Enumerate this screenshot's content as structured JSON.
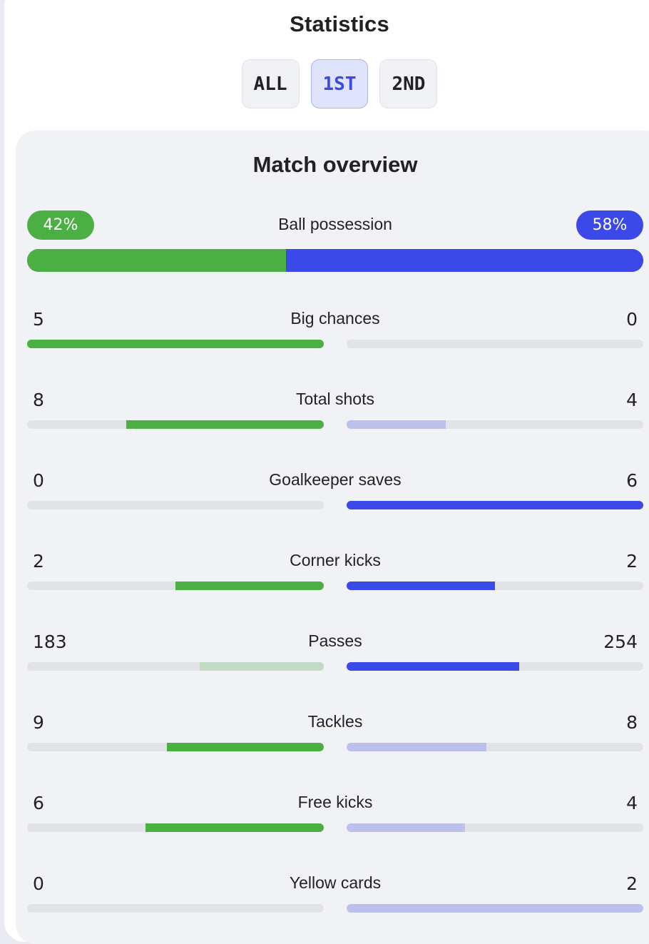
{
  "header": {
    "title": "Statistics"
  },
  "tabs": [
    {
      "label": "ALL",
      "active": false
    },
    {
      "label": "1ST",
      "active": true
    },
    {
      "label": "2ND",
      "active": false
    }
  ],
  "overview": {
    "title": "Match overview",
    "possession": {
      "label": "Ball possession",
      "home": "42%",
      "away": "58%",
      "home_value": 42,
      "away_value": 58
    },
    "colors": {
      "home_strong": "#4caf43",
      "home_weak": "#c1dac4",
      "away_strong": "#3a49e8",
      "away_weak": "#bcc1ec",
      "track": "#e2e3e8"
    },
    "stats": [
      {
        "label": "Big chances",
        "home": "5",
        "away": "0",
        "home_value": 5,
        "away_value": 0,
        "home_strong": true,
        "away_strong": false
      },
      {
        "label": "Total shots",
        "home": "8",
        "away": "4",
        "home_value": 8,
        "away_value": 4,
        "home_strong": true,
        "away_strong": false
      },
      {
        "label": "Goalkeeper saves",
        "home": "0",
        "away": "6",
        "home_value": 0,
        "away_value": 6,
        "home_strong": false,
        "away_strong": true
      },
      {
        "label": "Corner kicks",
        "home": "2",
        "away": "2",
        "home_value": 2,
        "away_value": 2,
        "home_strong": true,
        "away_strong": true
      },
      {
        "label": "Passes",
        "home": "183",
        "away": "254",
        "home_value": 183,
        "away_value": 254,
        "home_strong": false,
        "away_strong": true
      },
      {
        "label": "Tackles",
        "home": "9",
        "away": "8",
        "home_value": 9,
        "away_value": 8,
        "home_strong": true,
        "away_strong": false
      },
      {
        "label": "Free kicks",
        "home": "6",
        "away": "4",
        "home_value": 6,
        "away_value": 4,
        "home_strong": true,
        "away_strong": false
      },
      {
        "label": "Yellow cards",
        "home": "0",
        "away": "2",
        "home_value": 0,
        "away_value": 2,
        "home_strong": false,
        "away_strong": false
      }
    ]
  }
}
